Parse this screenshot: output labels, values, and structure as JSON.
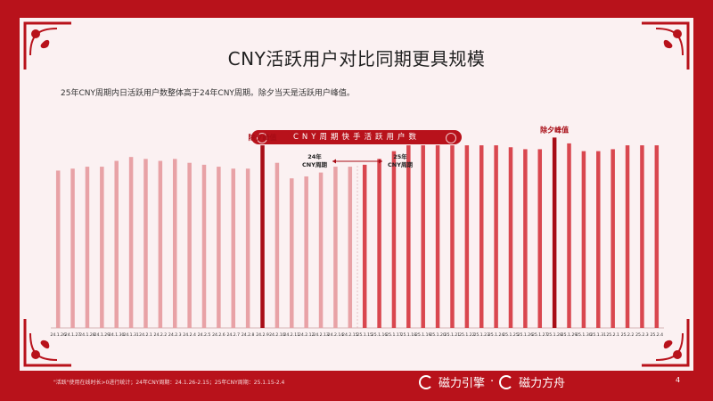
{
  "slide": {
    "title": "CNY活跃用户对比同期更具规模",
    "subtitle": "25年CNY周期内日活跃用户数整体高于24年CNY周期。除夕当天是活跃用户峰值。",
    "footnote": "\"活跃\"使用在线时长>0进行统计；24年CNY周期：24.1.26-2.15；25年CNY周期：25.1.15-2.4",
    "brand_left": "磁力引擎",
    "brand_sep": "·",
    "brand_right": "磁力方舟",
    "page_number": "4"
  },
  "colors": {
    "background": "#b8121b",
    "panel": "#fbf1f2",
    "bar_2024": "#e8a2a6",
    "bar_2025": "#d9474f",
    "bar_peak": "#a80d16",
    "text": "#222222"
  },
  "icons": {
    "corner": "ornament-icon",
    "arrow": "double-arrow-icon",
    "logo": "brand-logo-icon"
  },
  "chart_data": {
    "type": "bar",
    "title": "CNY周期快手活跃用户数",
    "xlabel": "",
    "ylabel": "",
    "grid": false,
    "legend": "none",
    "ylim": [
      0,
      100
    ],
    "categories": [
      "24.1.26",
      "24.1.27",
      "24.1.28",
      "24.1.29",
      "24.1.30",
      "24.1.31",
      "24.2.1",
      "24.2.2",
      "24.2.3",
      "24.2.4",
      "24.2.5",
      "24.2.6",
      "24.2.7",
      "24.2.8",
      "24.2.9",
      "24.2.10",
      "24.2.11",
      "24.2.12",
      "24.2.13",
      "24.2.14",
      "24.2.15",
      "25.1.15",
      "25.1.16",
      "25.1.17",
      "25.1.18",
      "25.1.19",
      "25.1.20",
      "25.1.21",
      "25.1.22",
      "25.1.23",
      "25.1.24",
      "25.1.25",
      "25.1.26",
      "25.1.27",
      "25.1.28",
      "25.1.29",
      "25.1.30",
      "25.1.31",
      "25.2.1",
      "25.2.2",
      "25.2.3",
      "25.2.4"
    ],
    "values": [
      81,
      82,
      83,
      83,
      86,
      88,
      87,
      86,
      87,
      85,
      84,
      83,
      82,
      82,
      94,
      85,
      77,
      78,
      80,
      83,
      83,
      84,
      87,
      91,
      94,
      94,
      94,
      94,
      94,
      94,
      94,
      93,
      92,
      92,
      98,
      95,
      91,
      91,
      92,
      94,
      94,
      94
    ],
    "period_break_index": 21,
    "peaks": [
      {
        "index": 14,
        "label": "除夕峰值"
      },
      {
        "index": 34,
        "label": "除夕峰值"
      }
    ],
    "annotations": {
      "period_2024": "24年\nCNY周期",
      "period_2025": "25年\nCNY周期"
    }
  }
}
